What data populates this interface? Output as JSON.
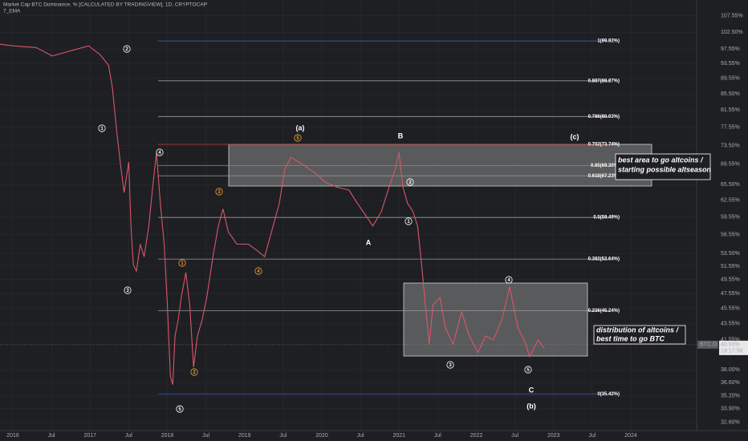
{
  "chart_data": {
    "type": "line",
    "title": "Market Cap BTC Dominance, % [CALCULATED BY TRADINGVIEW], 1D, CRYPTOCAP",
    "subtitle": "7_EMA",
    "log_scale": true,
    "grid": true,
    "series": [
      {
        "name": "BTC.D",
        "color": "#d9566a",
        "x": [
          2015.83,
          2016.0,
          2016.3,
          2016.51,
          2016.98,
          2017.13,
          2017.24,
          2017.29,
          2017.34,
          2017.39,
          2017.44,
          2017.5,
          2017.53,
          2017.56,
          2017.6,
          2017.65,
          2017.7,
          2017.76,
          2017.81,
          2017.86,
          2017.91,
          2017.96,
          2018.0,
          2018.04,
          2018.07,
          2018.1,
          2018.14,
          2018.18,
          2018.24,
          2018.29,
          2018.34,
          2018.39,
          2018.45,
          2018.51,
          2018.59,
          2018.66,
          2018.72,
          2018.79,
          2018.9,
          2019.05,
          2019.16,
          2019.26,
          2019.37,
          2019.45,
          2019.52,
          2019.6,
          2019.7,
          2019.8,
          2019.94,
          2020.04,
          2020.2,
          2020.35,
          2020.46,
          2020.56,
          2020.66,
          2020.77,
          2020.87,
          2020.95,
          2021.0,
          2021.05,
          2021.11,
          2021.18,
          2021.24,
          2021.29,
          2021.34,
          2021.39,
          2021.44,
          2021.53,
          2021.6,
          2021.7,
          2021.81,
          2021.91,
          2022.02,
          2022.12,
          2022.22,
          2022.33,
          2022.43,
          2022.54,
          2022.64,
          2022.69,
          2022.8,
          2022.88
        ],
        "values": [
          99.0,
          98.5,
          98.0,
          95.6,
          98.5,
          96.0,
          93.0,
          87.0,
          77.3,
          70.0,
          64.0,
          70.0,
          58.0,
          51.8,
          50.8,
          55.0,
          53.0,
          58.0,
          65.0,
          72.0,
          62.0,
          55.0,
          46.1,
          37.3,
          36.4,
          42.0,
          44.0,
          47.0,
          50.6,
          46.0,
          38.3,
          42.0,
          44.0,
          47.0,
          53.0,
          58.0,
          61.0,
          57.0,
          55.0,
          55.0,
          54.0,
          53.0,
          58.0,
          62.0,
          68.5,
          71.0,
          70.0,
          69.0,
          67.5,
          66.0,
          65.0,
          64.5,
          62.0,
          60.0,
          58.0,
          60.5,
          65.0,
          68.5,
          72.0,
          65.0,
          62.0,
          60.5,
          58.0,
          52.0,
          46.0,
          41.0,
          46.0,
          47.0,
          43.0,
          41.0,
          45.0,
          42.0,
          40.0,
          42.0,
          41.5,
          44.0,
          48.5,
          43.0,
          41.0,
          39.5,
          41.5,
          40.5
        ]
      }
    ],
    "xlim": [
      2015.834,
      2024.852
    ],
    "xticks": [
      2016,
      {
        "value": 2016.5,
        "label": "Jul"
      },
      2017,
      {
        "value": 2017.5,
        "label": "Jul"
      },
      2018,
      {
        "value": 2018.5,
        "label": "Jul"
      },
      2019,
      {
        "value": 2019.5,
        "label": "Jul"
      },
      2020,
      {
        "value": 2020.5,
        "label": "Jul"
      },
      2021,
      {
        "value": 2021.5,
        "label": "Jul"
      },
      2022,
      {
        "value": 2022.5,
        "label": "Jul"
      },
      2023,
      {
        "value": 2023.5,
        "label": "Jul"
      },
      2024
    ],
    "ylim": [
      31.8,
      112.7
    ],
    "yticks": [
      {
        "value": 107.55,
        "label": "107.55%"
      },
      {
        "value": 102.5,
        "label": "102.50%"
      },
      {
        "value": 97.55,
        "label": "97.55%"
      },
      {
        "value": 93.55,
        "label": "93.55%"
      },
      {
        "value": 89.55,
        "label": "89.55%"
      },
      {
        "value": 85.5,
        "label": "85.50%"
      },
      {
        "value": 81.55,
        "label": "81.55%"
      },
      {
        "value": 77.55,
        "label": "77.55%"
      },
      {
        "value": 73.5,
        "label": "73.50%"
      },
      {
        "value": 69.55,
        "label": "69.55%"
      },
      {
        "value": 65.5,
        "label": "65.50%"
      },
      {
        "value": 62.55,
        "label": "62.55%"
      },
      {
        "value": 59.55,
        "label": "59.55%"
      },
      {
        "value": 56.55,
        "label": "56.55%"
      },
      {
        "value": 53.5,
        "label": "53.50%"
      },
      {
        "value": 51.55,
        "label": "51.55%"
      },
      {
        "value": 49.55,
        "label": "49.55%"
      },
      {
        "value": 47.55,
        "label": "47.55%"
      },
      {
        "value": 45.55,
        "label": "45.55%"
      },
      {
        "value": 43.55,
        "label": "43.55%"
      },
      {
        "value": 41.55,
        "label": "41.55%"
      },
      {
        "value": 38.0,
        "label": "38.00%"
      },
      {
        "value": 36.6,
        "label": "36.60%"
      },
      {
        "value": 35.2,
        "label": "35.20%"
      },
      {
        "value": 33.9,
        "label": "33.90%"
      },
      {
        "value": 32.6,
        "label": "32.60%"
      }
    ],
    "fib_levels": [
      {
        "label": "1(99.92%)",
        "value": 99.92,
        "color": "#3f5fb8"
      },
      {
        "label": "0.887(88.87%)",
        "value": 88.87,
        "color": "#9a9a9a"
      },
      {
        "label": "0.786(80.03%)",
        "value": 80.03,
        "color": "#9a9a9a"
      },
      {
        "label": "0.702(73.74%)",
        "value": 73.74,
        "color": "#d23a3a"
      },
      {
        "label": "0.65(69.30%)",
        "value": 69.3,
        "color": "#4caf50"
      },
      {
        "label": "0.618(67.23%)",
        "value": 67.23,
        "color": "#9a9a9a"
      },
      {
        "label": "0.5(59.49%)",
        "value": 59.49,
        "color": "#9a9a9a"
      },
      {
        "label": "0.382(52.64%)",
        "value": 52.64,
        "color": "#9a9a9a"
      },
      {
        "label": "0.236(45.24%)",
        "value": 45.24,
        "color": "#9a9a9a"
      },
      {
        "label": "0(35.42%)",
        "value": 35.42,
        "color": "#3f5fb8"
      }
    ],
    "annotations": [
      "2",
      "1",
      "4",
      "3",
      "1",
      "5",
      "3",
      "2",
      "4",
      "5",
      "2",
      "1",
      "3",
      "4",
      "5",
      "(a)",
      "B",
      "(c)",
      "A",
      "C",
      "(b)"
    ],
    "notes": [
      [
        "best area to go altcoins /",
        "starting possible altseason"
      ],
      [
        "distribution of altcoins /",
        "best time to go BTC"
      ]
    ],
    "symbol": "BTC.D",
    "last_price": {
      "value": 40.93,
      "label": "40.93%"
    },
    "countdown": "19:17:56"
  }
}
